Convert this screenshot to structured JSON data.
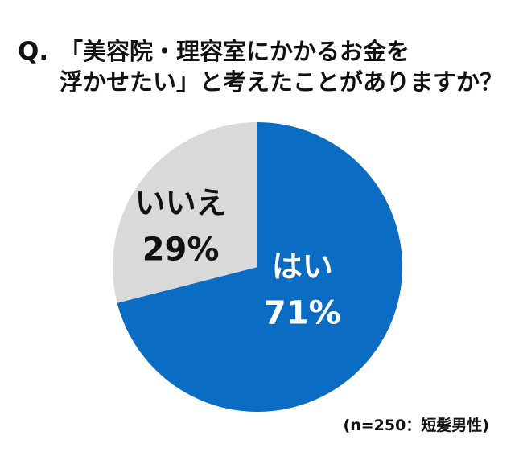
{
  "title": {
    "prefix": "Q.",
    "line1": "「美容院・理容室にかかるお金を",
    "line2": "浮かせたい」と考えたことがありますか？"
  },
  "footnote": "(n=250：短髪男性)",
  "colors": {
    "yes": "#0A6CC2",
    "no": "#D9D9D9",
    "yes_text": "#FFFFFF",
    "no_text": "#111111"
  },
  "chart_data": {
    "type": "pie",
    "title": "",
    "slices": [
      {
        "label": "はい",
        "value": 71,
        "value_label": "71%"
      },
      {
        "label": "いいえ",
        "value": 29,
        "value_label": "29%"
      }
    ],
    "start_angle_deg": 0,
    "direction": "clockwise",
    "legend": "none"
  }
}
